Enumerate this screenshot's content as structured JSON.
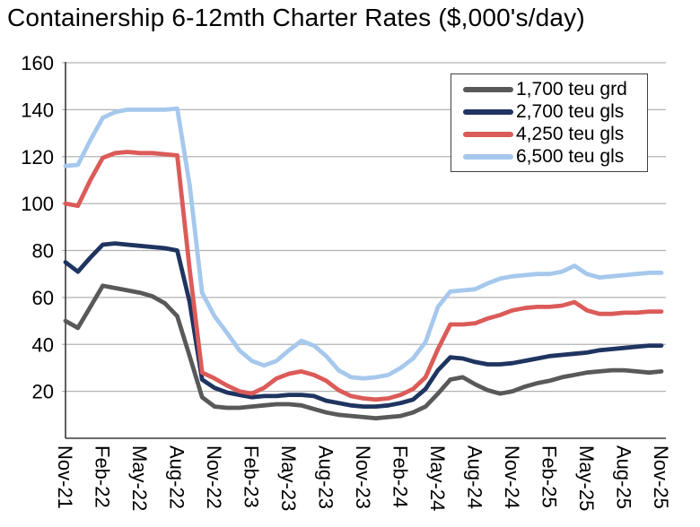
{
  "chart_data": {
    "type": "line",
    "title": "Containership 6-12mth Charter Rates ($,000's/day)",
    "xlabel": "",
    "ylabel": "",
    "ylim": [
      0,
      160
    ],
    "yticks": [
      20,
      40,
      60,
      80,
      100,
      120,
      140,
      160
    ],
    "grid": "horizontal-only",
    "legend_position": "top-right",
    "x_months": [
      "Nov-21",
      "Dec-21",
      "Jan-22",
      "Feb-22",
      "Mar-22",
      "Apr-22",
      "May-22",
      "Jun-22",
      "Jul-22",
      "Aug-22",
      "Sep-22",
      "Oct-22",
      "Nov-22",
      "Dec-22",
      "Jan-23",
      "Feb-23",
      "Mar-23",
      "Apr-23",
      "May-23",
      "Jun-23",
      "Jul-23",
      "Aug-23",
      "Sep-23",
      "Oct-23",
      "Nov-23",
      "Dec-23",
      "Jan-24",
      "Feb-24",
      "Mar-24",
      "Apr-24",
      "May-24",
      "Jun-24",
      "Jul-24",
      "Aug-24",
      "Sep-24",
      "Oct-24",
      "Nov-24",
      "Dec-24",
      "Jan-25",
      "Feb-25",
      "Mar-25",
      "Apr-25",
      "May-25",
      "Jun-25",
      "Jul-25",
      "Aug-25",
      "Sep-25",
      "Oct-25",
      "Nov-25"
    ],
    "x_tick_labels": [
      "Nov-21",
      "Feb-22",
      "May-22",
      "Aug-22",
      "Nov-22",
      "Feb-23",
      "May-23",
      "Aug-23",
      "Nov-23",
      "Feb-24",
      "May-24",
      "Aug-24",
      "Nov-24",
      "Feb-25",
      "May-25",
      "Aug-25",
      "Nov-25"
    ],
    "series": [
      {
        "name": "1,700 teu grd",
        "color": "#595959",
        "values": [
          50,
          47,
          56,
          65,
          64,
          63,
          62,
          60.5,
          57.5,
          52,
          35,
          17.5,
          13.5,
          13,
          13,
          13.5,
          14,
          14.5,
          14.5,
          14,
          12.5,
          11,
          10,
          9.5,
          9,
          8.5,
          9,
          9.5,
          11,
          13.5,
          19,
          25,
          26,
          23,
          20.5,
          19,
          20,
          22,
          23.5,
          24.5,
          26,
          27,
          28,
          28.5,
          29,
          29,
          28.5,
          28,
          28.5
        ]
      },
      {
        "name": "2,700 teu gls",
        "color": "#1F3460",
        "values": [
          75,
          71,
          77,
          82.5,
          83,
          82.5,
          82,
          81.5,
          81,
          80,
          58,
          25,
          21.5,
          19.5,
          18.5,
          17.5,
          18,
          18,
          18.5,
          18.5,
          18,
          16,
          15,
          14,
          13.5,
          13.5,
          14,
          15,
          16.5,
          21,
          29,
          34.5,
          34,
          32.5,
          31.5,
          31.5,
          32,
          33,
          34,
          35,
          35.5,
          36,
          36.5,
          37.5,
          38,
          38.5,
          39,
          39.5,
          39.5
        ]
      },
      {
        "name": "4,250 teu gls",
        "color": "#DB5B58",
        "values": [
          100,
          99,
          110,
          119.5,
          121.5,
          122,
          121.5,
          121.5,
          121,
          120.5,
          72,
          28,
          25.5,
          22.5,
          20,
          19,
          21.5,
          25.5,
          27.5,
          28.5,
          27,
          24.5,
          20.5,
          18,
          17,
          16.5,
          17,
          18.5,
          21,
          26,
          38,
          48.5,
          48.5,
          49,
          51,
          52.5,
          54.5,
          55.5,
          56,
          56,
          56.5,
          58,
          54.5,
          53,
          53,
          53.5,
          53.5,
          54,
          54
        ]
      },
      {
        "name": "6,500 teu gls",
        "color": "#A6C8ED",
        "values": [
          116,
          116.5,
          127,
          136.5,
          139,
          140,
          140,
          140,
          140,
          140.5,
          108,
          62,
          52,
          45,
          37.5,
          33,
          31,
          33,
          37.5,
          41.5,
          39.5,
          35,
          29,
          26,
          25.5,
          26,
          27,
          30,
          34,
          41,
          56,
          62.5,
          63,
          63.5,
          66,
          68,
          69,
          69.5,
          70,
          70,
          71,
          73.5,
          70,
          68.5,
          69,
          69.5,
          70,
          70.5,
          70.5
        ]
      }
    ]
  },
  "colors": {
    "gridline": "#b3b3b3",
    "axis": "#383838",
    "tick_text": "#000000",
    "background": "#ffffff"
  }
}
